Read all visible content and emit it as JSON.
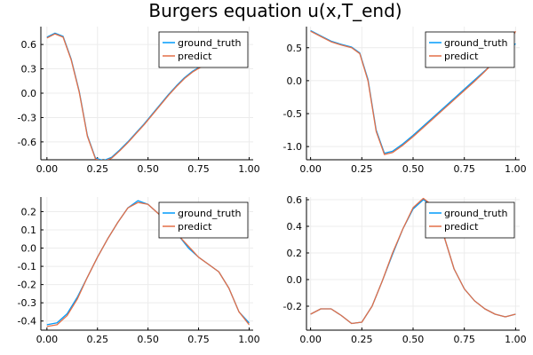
{
  "figure": {
    "title": "Burgers equation u(x,T_end)",
    "background": "#ffffff",
    "grid_color": "#ececec",
    "axis_color": "#000000"
  },
  "chart_data": [
    {
      "type": "line",
      "xlim": [
        -0.03,
        1.02
      ],
      "ylim": [
        -0.82,
        0.82
      ],
      "x_ticks": [
        "0.00",
        "0.25",
        "0.50",
        "0.75",
        "1.00"
      ],
      "y_ticks": [
        "0.6",
        "0.3",
        "0.0",
        "-0.3",
        "-0.6"
      ],
      "grid": true,
      "legend": "top-right",
      "x": [
        0.0,
        0.04,
        0.08,
        0.12,
        0.16,
        0.2,
        0.24,
        0.28,
        0.32,
        0.36,
        0.4,
        0.44,
        0.48,
        0.52,
        0.56,
        0.6,
        0.64,
        0.68,
        0.72,
        0.76,
        0.8
      ],
      "series": [
        {
          "name": "ground_truth",
          "color": "#009AFA",
          "values": [
            0.69,
            0.74,
            0.7,
            0.42,
            0.02,
            -0.52,
            -0.8,
            -0.83,
            -0.79,
            -0.7,
            -0.6,
            -0.49,
            -0.38,
            -0.26,
            -0.14,
            -0.02,
            0.09,
            0.19,
            0.27,
            0.33,
            0.35
          ]
        },
        {
          "name": "predict",
          "color": "#E36F47",
          "values": [
            0.68,
            0.73,
            0.69,
            0.41,
            0.01,
            -0.53,
            -0.81,
            -0.84,
            -0.8,
            -0.71,
            -0.61,
            -0.5,
            -0.39,
            -0.27,
            -0.15,
            -0.03,
            0.08,
            0.18,
            0.26,
            0.32,
            0.34
          ]
        }
      ]
    },
    {
      "type": "line",
      "xlim": [
        -0.02,
        1.02
      ],
      "ylim": [
        -1.2,
        0.82
      ],
      "x_ticks": [
        "0.00",
        "0.25",
        "0.50",
        "0.75",
        "1.00"
      ],
      "y_ticks": [
        "0.5",
        "0.0",
        "-0.5",
        "-1.0"
      ],
      "grid": true,
      "legend": "top-right",
      "x": [
        0.0,
        0.05,
        0.1,
        0.15,
        0.2,
        0.24,
        0.28,
        0.32,
        0.36,
        0.4,
        0.45,
        0.5,
        0.55,
        0.6,
        0.65,
        0.7,
        0.75,
        0.8,
        0.85,
        0.9,
        0.95,
        1.0
      ],
      "series": [
        {
          "name": "ground_truth",
          "color": "#009AFA",
          "values": [
            0.76,
            0.68,
            0.6,
            0.55,
            0.51,
            0.42,
            0.02,
            -0.75,
            -1.1,
            -1.07,
            -0.96,
            -0.83,
            -0.69,
            -0.55,
            -0.41,
            -0.27,
            -0.13,
            0.01,
            0.15,
            0.29,
            0.43,
            0.56
          ]
        },
        {
          "name": "predict",
          "color": "#E36F47",
          "values": [
            0.75,
            0.67,
            0.59,
            0.54,
            0.5,
            0.41,
            0.0,
            -0.77,
            -1.12,
            -1.09,
            -0.98,
            -0.85,
            -0.71,
            -0.57,
            -0.43,
            -0.29,
            -0.15,
            -0.01,
            0.14,
            0.3,
            0.46,
            0.75
          ]
        }
      ]
    },
    {
      "type": "line",
      "xlim": [
        -0.03,
        1.02
      ],
      "ylim": [
        -0.45,
        0.28
      ],
      "x_ticks": [
        "0.00",
        "0.25",
        "0.50",
        "0.75",
        "1.00"
      ],
      "y_ticks": [
        "0.2",
        "0.1",
        "0.0",
        "-0.1",
        "-0.2",
        "-0.3",
        "-0.4"
      ],
      "grid": true,
      "legend": "top-right",
      "x": [
        0.0,
        0.05,
        0.1,
        0.15,
        0.2,
        0.25,
        0.3,
        0.35,
        0.4,
        0.45,
        0.5,
        0.55,
        0.6,
        0.65,
        0.7,
        0.75,
        0.8,
        0.85,
        0.9,
        0.95,
        1.0
      ],
      "series": [
        {
          "name": "ground_truth",
          "color": "#009AFA",
          "values": [
            -0.42,
            -0.41,
            -0.36,
            -0.27,
            -0.16,
            -0.05,
            0.05,
            0.14,
            0.22,
            0.26,
            0.24,
            0.19,
            0.13,
            0.07,
            0.0,
            -0.05,
            -0.09,
            -0.13,
            -0.22,
            -0.35,
            -0.41
          ]
        },
        {
          "name": "predict",
          "color": "#E36F47",
          "values": [
            -0.43,
            -0.42,
            -0.37,
            -0.28,
            -0.16,
            -0.05,
            0.05,
            0.14,
            0.22,
            0.25,
            0.24,
            0.19,
            0.13,
            0.07,
            0.01,
            -0.05,
            -0.09,
            -0.13,
            -0.22,
            -0.35,
            -0.42
          ]
        }
      ]
    },
    {
      "type": "line",
      "xlim": [
        -0.02,
        1.02
      ],
      "ylim": [
        -0.38,
        0.62
      ],
      "x_ticks": [
        "0.00",
        "0.25",
        "0.50",
        "0.75",
        "1.00"
      ],
      "y_ticks": [
        "0.6",
        "0.4",
        "0.2",
        "0.0",
        "-0.2"
      ],
      "grid": true,
      "legend": "top-right",
      "x": [
        0.0,
        0.05,
        0.1,
        0.15,
        0.2,
        0.25,
        0.3,
        0.35,
        0.4,
        0.45,
        0.5,
        0.55,
        0.6,
        0.65,
        0.7,
        0.75,
        0.8,
        0.85,
        0.9,
        0.95,
        1.0
      ],
      "series": [
        {
          "name": "ground_truth",
          "color": "#009AFA",
          "values": [
            -0.26,
            -0.22,
            -0.22,
            -0.27,
            -0.33,
            -0.32,
            -0.2,
            -0.01,
            0.19,
            0.38,
            0.53,
            0.6,
            0.55,
            0.33,
            0.08,
            -0.07,
            -0.16,
            -0.22,
            -0.26,
            -0.28,
            -0.26
          ]
        },
        {
          "name": "predict",
          "color": "#E36F47",
          "values": [
            -0.26,
            -0.22,
            -0.22,
            -0.27,
            -0.33,
            -0.32,
            -0.2,
            -0.01,
            0.2,
            0.38,
            0.54,
            0.61,
            0.55,
            0.33,
            0.08,
            -0.07,
            -0.16,
            -0.22,
            -0.26,
            -0.28,
            -0.26
          ]
        }
      ]
    }
  ]
}
